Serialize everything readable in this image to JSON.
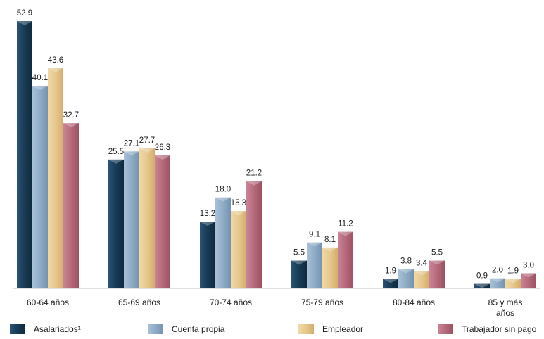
{
  "chart_data": {
    "type": "bar",
    "categories": [
      "60-64 años",
      "65-69 años",
      "70-74 años",
      "75-79 años",
      "80-84 años",
      "85 y más años"
    ],
    "series": [
      {
        "name": "Asalariados¹",
        "color": "#173a55",
        "values": [
          52.9,
          25.5,
          13.2,
          5.5,
          1.9,
          0.9
        ]
      },
      {
        "name": "Cuenta propia",
        "color": "#8fabc6",
        "values": [
          40.1,
          27.1,
          18.0,
          9.1,
          3.8,
          2.0
        ]
      },
      {
        "name": "Empleador",
        "color": "#e6c88e",
        "values": [
          43.6,
          27.7,
          15.3,
          8.1,
          3.4,
          1.9
        ]
      },
      {
        "name": "Trabajador sin pago",
        "color": "#b56a7b",
        "values": [
          32.7,
          26.3,
          21.2,
          11.2,
          5.5,
          3.0
        ]
      }
    ],
    "ylim": [
      0,
      52.9
    ],
    "grid": false,
    "legend_position": "bottom"
  }
}
